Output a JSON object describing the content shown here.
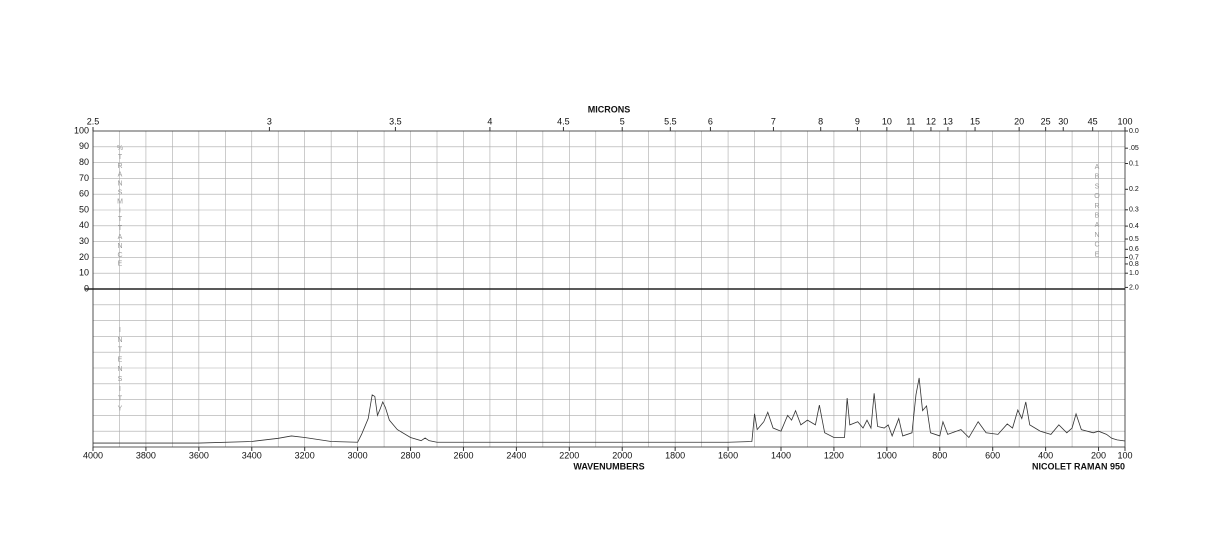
{
  "chart_data": {
    "type": "line",
    "title": "MICRONS",
    "xlabel": "WAVENUMBERS",
    "annotation": "NICOLET RAMAN 950",
    "ylabel": "%TRANSMITTANCE",
    "y2label": "ABSORBANCE",
    "intensity_label": "INTENSITY",
    "xlim": [
      4000,
      100
    ],
    "xticks": [
      4000,
      3800,
      3600,
      3400,
      3200,
      3000,
      2800,
      2600,
      2400,
      2200,
      2000,
      1800,
      1600,
      1400,
      1200,
      1000,
      800,
      600,
      400,
      200,
      100
    ],
    "micron_ticks": [
      2.5,
      3,
      3.5,
      4,
      4.5,
      5,
      5.5,
      6,
      7,
      8,
      9,
      10,
      11,
      12,
      13,
      15,
      20,
      25,
      30,
      45,
      100
    ],
    "ylim": [
      0,
      100
    ],
    "yticks": [
      0,
      10,
      20,
      30,
      40,
      50,
      60,
      70,
      80,
      90,
      100
    ],
    "y2ticks": [
      {
        "value": 0,
        "label": "0.0"
      },
      {
        "value": 0.05,
        "label": ".05"
      },
      0.1,
      0.2,
      0.3,
      0.4,
      0.5,
      0.6,
      0.7,
      0.8,
      {
        "value": 1,
        "label": "1.0"
      },
      {
        "value": 2,
        "label": "2.0"
      }
    ],
    "intensity_lim": [
      0,
      100
    ],
    "grid": true,
    "x": [
      4000,
      3600,
      3400,
      3300,
      3250,
      3200,
      3100,
      3000,
      2985,
      2975,
      2960,
      2945,
      2935,
      2925,
      2915,
      2905,
      2895,
      2880,
      2850,
      2800,
      2760,
      2745,
      2730,
      2700,
      2200,
      1600,
      1510,
      1500,
      1490,
      1465,
      1450,
      1430,
      1400,
      1375,
      1360,
      1345,
      1325,
      1300,
      1270,
      1255,
      1235,
      1200,
      1160,
      1150,
      1140,
      1110,
      1090,
      1075,
      1060,
      1048,
      1035,
      1010,
      995,
      980,
      955,
      940,
      905,
      890,
      878,
      865,
      850,
      835,
      800,
      788,
      770,
      720,
      690,
      655,
      625,
      580,
      545,
      525,
      505,
      490,
      475,
      460,
      420,
      380,
      350,
      320,
      300,
      285,
      265,
      220,
      200,
      170,
      150,
      130,
      100
    ],
    "series": [
      {
        "name": "Raman intensity",
        "color": "#333333",
        "axis": "intensity",
        "values": [
          2.5,
          2.5,
          3.5,
          5.5,
          7,
          6,
          3.5,
          3,
          8,
          12,
          18,
          33,
          32,
          20,
          24,
          28.5,
          25,
          17,
          11,
          6,
          4,
          5.7,
          4,
          3,
          3,
          3,
          3.5,
          21,
          11,
          16,
          22,
          12,
          10,
          20,
          17,
          23,
          14,
          17,
          14,
          26.5,
          9,
          6,
          6,
          31,
          14,
          16,
          12,
          17,
          12,
          34,
          13,
          12,
          14,
          7,
          18,
          7,
          9,
          33,
          43.7,
          23,
          26,
          9,
          7,
          16,
          8,
          11,
          6,
          16,
          9,
          8,
          14.6,
          12,
          23.4,
          18,
          28.5,
          14,
          10,
          8,
          14,
          9,
          12,
          21,
          11,
          9,
          10,
          8,
          5.5,
          4.5,
          3.8
        ]
      }
    ]
  }
}
